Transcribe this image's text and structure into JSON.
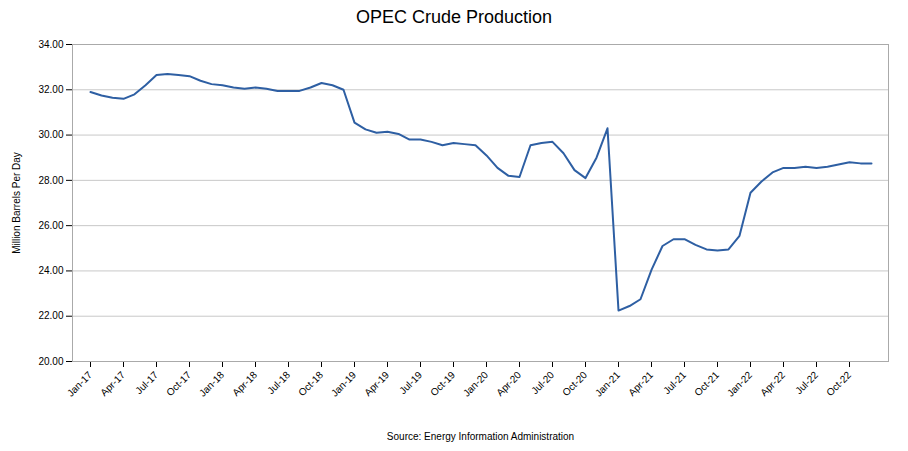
{
  "chart_data": {
    "type": "line",
    "title": "OPEC Crude Production",
    "xlabel": "Source: Energy Information Administration",
    "ylabel": "Million Barrels Per Day",
    "color": "#2E5FA3",
    "grid": true,
    "ylim": [
      20.0,
      34.0
    ],
    "yticks": [
      {
        "value": 20,
        "label": "20.00"
      },
      {
        "value": 22,
        "label": "22.00"
      },
      {
        "value": 24,
        "label": "24.00"
      },
      {
        "value": 26,
        "label": "26.00"
      },
      {
        "value": 28,
        "label": "28.00"
      },
      {
        "value": 30,
        "label": "30.00"
      },
      {
        "value": 32,
        "label": "32.00"
      },
      {
        "value": 34,
        "label": "34.00"
      }
    ],
    "categories": [
      "Jan-17",
      null,
      null,
      "Apr-17",
      null,
      null,
      "Jul-17",
      null,
      null,
      "Oct-17",
      null,
      null,
      "Jan-18",
      null,
      null,
      "Apr-18",
      null,
      null,
      "Jul-18",
      null,
      null,
      "Oct-18",
      null,
      null,
      "Jan-19",
      null,
      null,
      "Apr-19",
      null,
      null,
      "Jul-19",
      null,
      null,
      "Oct-19",
      null,
      null,
      "Jan-20",
      null,
      null,
      "Apr-20",
      null,
      null,
      "Jul-20",
      null,
      null,
      "Oct-20",
      null,
      null,
      "Jan-21",
      null,
      null,
      "Apr-21",
      null,
      null,
      "Jul-21",
      null,
      null,
      "Oct-21",
      null,
      null,
      "Jan-22",
      null,
      null,
      "Apr-22",
      null,
      null,
      "Jul-22",
      null,
      null,
      "Oct-22",
      null,
      null
    ],
    "values": [
      31.9,
      31.75,
      31.65,
      31.6,
      31.8,
      32.2,
      32.65,
      32.7,
      32.65,
      32.6,
      32.4,
      32.25,
      32.2,
      32.1,
      32.05,
      32.1,
      32.05,
      31.95,
      31.95,
      31.95,
      32.1,
      32.3,
      32.2,
      32.0,
      30.55,
      30.25,
      30.1,
      30.15,
      30.05,
      29.8,
      29.8,
      29.7,
      29.55,
      29.65,
      29.6,
      29.55,
      29.1,
      28.55,
      28.2,
      28.15,
      29.55,
      29.65,
      29.7,
      29.2,
      28.45,
      28.1,
      29.0,
      30.3,
      22.25,
      22.45,
      22.75,
      24.05,
      25.1,
      25.4,
      25.4,
      25.15,
      24.95,
      24.9,
      24.95,
      25.55,
      27.45,
      27.95,
      28.35,
      28.55,
      28.55,
      28.6,
      28.55,
      28.6,
      28.7,
      28.8,
      28.75,
      28.75
    ]
  }
}
